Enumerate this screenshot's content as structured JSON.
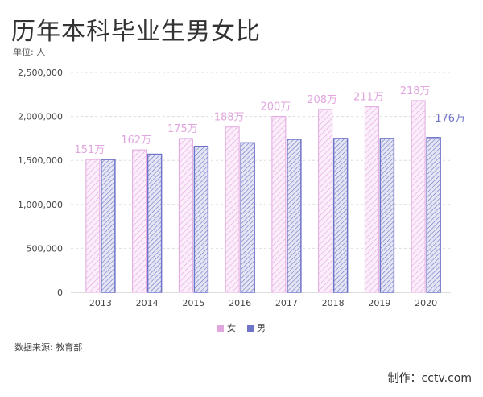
{
  "title": "历年本科毕业生男女比",
  "unit_label": "单位: 人",
  "source": "数据来源: 教育部",
  "credit": "制作：cctv.com",
  "chart_data": {
    "type": "bar",
    "categories": [
      "2013",
      "2014",
      "2015",
      "2016",
      "2017",
      "2018",
      "2019",
      "2020"
    ],
    "series": [
      {
        "name": "女",
        "color": "#e2a6df",
        "values": [
          1510000,
          1620000,
          1750000,
          1880000,
          2000000,
          2080000,
          2110000,
          2180000
        ],
        "labels": [
          "151万",
          "162万",
          "175万",
          "188万",
          "200万",
          "208万",
          "211万",
          "218万"
        ]
      },
      {
        "name": "男",
        "color": "#6f74c8",
        "values": [
          1510000,
          1570000,
          1660000,
          1700000,
          1740000,
          1750000,
          1750000,
          1760000
        ],
        "labels": [
          "",
          "",
          "",
          "",
          "",
          "",
          "",
          "176万"
        ]
      }
    ],
    "ylim": [
      0,
      2500000
    ],
    "yticks": [
      "0",
      "500,000",
      "1,000,000",
      "1,500,000",
      "2,000,000",
      "2,500,000"
    ],
    "grid": true,
    "legend": "bottom"
  }
}
